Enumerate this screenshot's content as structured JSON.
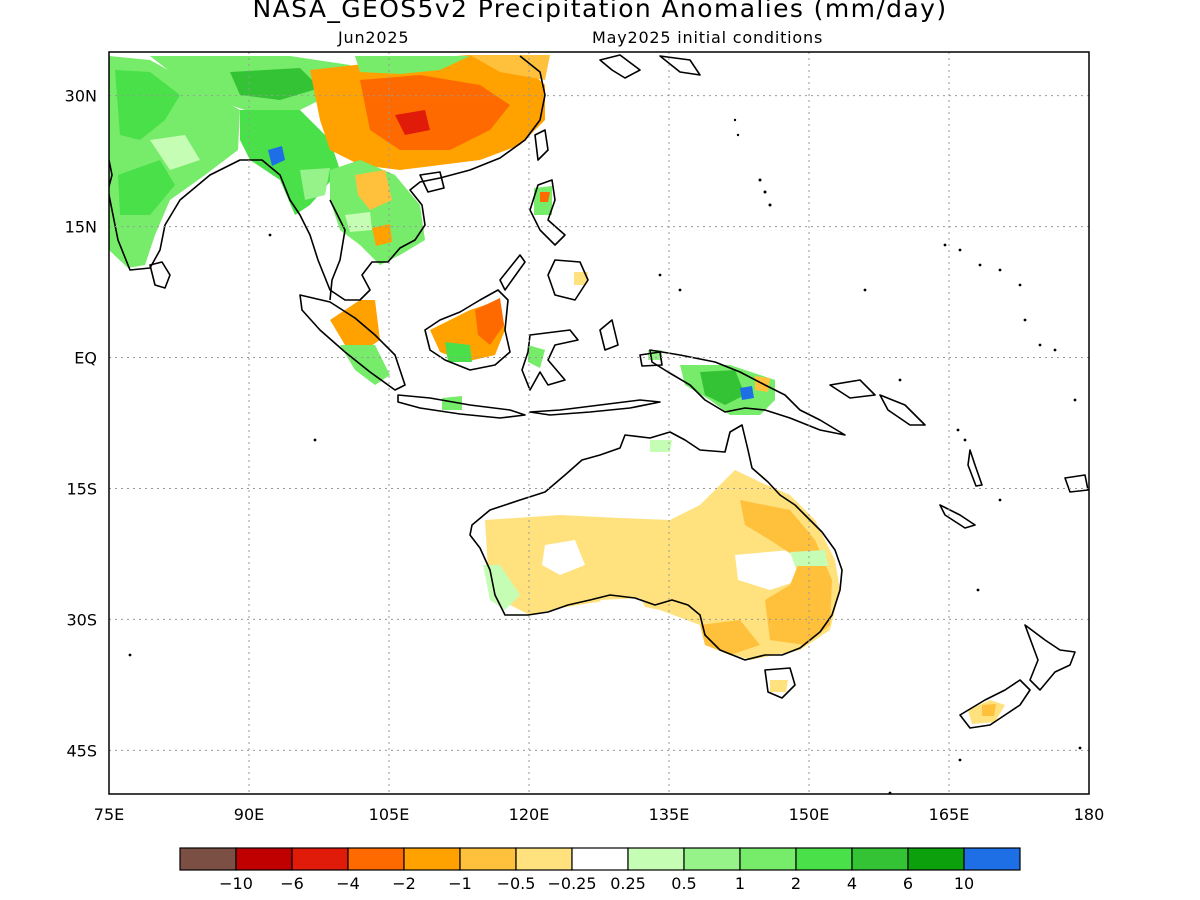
{
  "title": "NASA_GEOS5v2 Precipitation Anomalies (mm/day)",
  "subtitle_left": "Jun2025",
  "subtitle_right": "May2025 initial conditions",
  "map": {
    "lon_range": [
      75,
      180
    ],
    "lat_range": [
      -50,
      35
    ],
    "lon_ticks": [
      75,
      90,
      105,
      120,
      135,
      150,
      165,
      180
    ],
    "lon_labels": [
      "75E",
      "90E",
      "105E",
      "120E",
      "135E",
      "150E",
      "165E",
      "180"
    ],
    "lat_ticks": [
      30,
      15,
      0,
      -15,
      -30,
      -45
    ],
    "lat_labels": [
      "30N",
      "15N",
      "EQ",
      "15S",
      "30S",
      "45S"
    ],
    "gridlines": "dotted"
  },
  "colorbar": {
    "colors": [
      "#7b4f44",
      "#c00000",
      "#e01b0a",
      "#ff6a00",
      "#ffa200",
      "#ffc03c",
      "#ffe17e",
      "#ffffff",
      "#c6fdb5",
      "#95f38a",
      "#77ec6a",
      "#4ae04a",
      "#34c334",
      "#0ca00c",
      "#1e6fe6"
    ],
    "labels": [
      "−10",
      "−6",
      "−4",
      "−2",
      "−1",
      "−0.5",
      "−0.25",
      "0.25",
      "0.5",
      "1",
      "2",
      "4",
      "6",
      "10"
    ]
  },
  "anomaly_regions": [
    {
      "region": "South Asia",
      "value": 2,
      "color": "#4ae04a"
    },
    {
      "region": "Southern China",
      "value": -2,
      "color": "#ff6a00"
    },
    {
      "region": "Indochina",
      "value": 1,
      "color": "#77ec6a"
    },
    {
      "region": "Borneo",
      "value": -1,
      "color": "#ffa200"
    },
    {
      "region": "New Guinea",
      "value": 2,
      "color": "#4ae04a"
    },
    {
      "region": "Australia",
      "value": -0.5,
      "color": "#ffe17e"
    },
    {
      "region": "Southeast Australia",
      "value": -1,
      "color": "#ffc03c"
    },
    {
      "region": "New Zealand South Island",
      "value": -0.5,
      "color": "#ffe17e"
    }
  ]
}
